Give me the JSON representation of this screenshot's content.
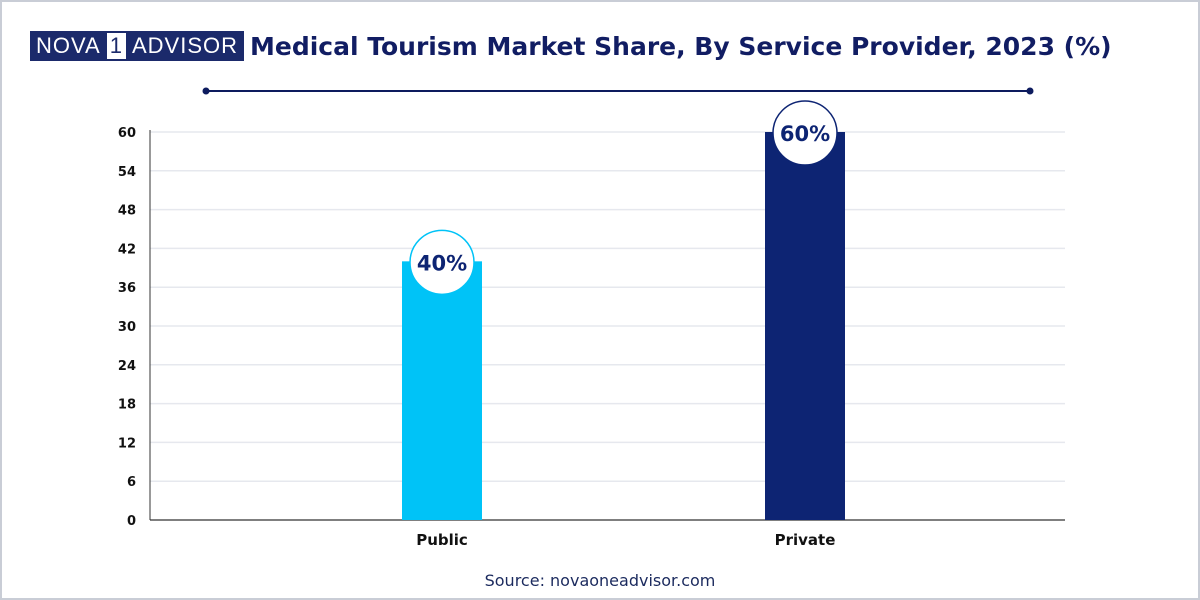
{
  "logo": {
    "part_left": "NOVA",
    "part_num": "1",
    "part_right": "ADVISOR"
  },
  "title": "Medical Tourism Market Share, By Service Provider, 2023 (%)",
  "source": "Source: novaoneadvisor.com",
  "colors": {
    "navy": "#0d2473",
    "public_bar": "#00c3f7",
    "private_bar": "#0d2473",
    "gridline": "#e6e8ee",
    "axis": "#333333"
  },
  "chart_data": {
    "type": "bar",
    "categories": [
      "Public",
      "Private"
    ],
    "values": [
      40,
      60
    ],
    "data_labels": [
      "40%",
      "60%"
    ],
    "bar_colors": [
      "#00c3f7",
      "#0d2473"
    ],
    "ylim": [
      0,
      60
    ],
    "yticks": [
      0,
      6,
      12,
      18,
      24,
      30,
      36,
      42,
      48,
      54,
      60
    ],
    "grid": true,
    "xlabel": "",
    "ylabel": ""
  }
}
